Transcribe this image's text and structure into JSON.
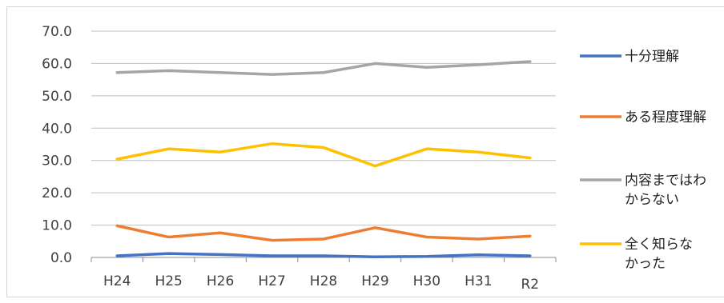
{
  "chart_data": {
    "type": "line",
    "title": "",
    "xlabel": "",
    "ylabel": "",
    "categories": [
      "H24",
      "H25",
      "H26",
      "H27",
      "H28",
      "H29",
      "H30",
      "H31",
      "R2"
    ],
    "ylim": [
      0,
      70
    ],
    "yticks": [
      "0.0",
      "10.0",
      "20.0",
      "30.0",
      "40.0",
      "50.0",
      "60.0",
      "70.0"
    ],
    "grid": true,
    "legend_position": "right",
    "series": [
      {
        "name": "十分理解",
        "label_lines": [
          "十分理解"
        ],
        "color": "#4472c4",
        "values": [
          0.5,
          1.2,
          0.9,
          0.5,
          0.5,
          0.2,
          0.3,
          0.8,
          0.5
        ]
      },
      {
        "name": "ある程度理解",
        "label_lines": [
          "ある程度理解"
        ],
        "color": "#ed7d31",
        "values": [
          9.8,
          6.3,
          7.6,
          5.3,
          5.7,
          9.2,
          6.3,
          5.7,
          6.6
        ]
      },
      {
        "name": "内容まではわからない",
        "label_lines": [
          "内容まではわ",
          "からない"
        ],
        "color": "#a5a5a5",
        "values": [
          57.2,
          57.8,
          57.2,
          56.6,
          57.2,
          60.0,
          58.8,
          59.6,
          60.6
        ]
      },
      {
        "name": "全く知らなかった",
        "label_lines": [
          "全く知らな",
          "かった"
        ],
        "color": "#ffc000",
        "values": [
          30.4,
          33.6,
          32.6,
          35.2,
          34.0,
          28.3,
          33.6,
          32.6,
          30.8
        ]
      }
    ]
  }
}
